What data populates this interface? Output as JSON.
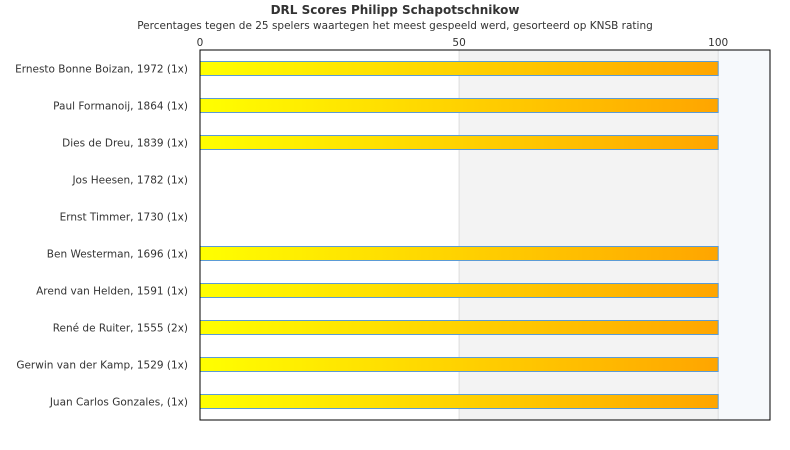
{
  "chart_data": {
    "type": "bar",
    "orientation": "horizontal",
    "title": "DRL Scores Philipp Schapotschnikow",
    "subtitle": "Percentages tegen de 25 spelers waartegen het meest gespeeld werd, gesorteerd op KNSB rating",
    "categories": [
      "Ernesto Bonne Boizan, 1972 (1x)",
      "Paul Formanoij, 1864 (1x)",
      "Dies de Dreu, 1839 (1x)",
      "Jos Heesen, 1782 (1x)",
      "Ernst Timmer, 1730 (1x)",
      "Ben Westerman, 1696 (1x)",
      "Arend van Helden, 1591 (1x)",
      "René de Ruiter, 1555 (2x)",
      "Gerwin van der Kamp, 1529 (1x)",
      "Juan Carlos Gonzales,  (1x)"
    ],
    "values": [
      100,
      100,
      100,
      0,
      0,
      100,
      100,
      100,
      100,
      100
    ],
    "xticks": [
      "0",
      "50",
      "100"
    ],
    "xlim": [
      0,
      110
    ],
    "colors": {
      "bar_start": "#ffff00",
      "bar_end": "#ffa500",
      "bar_border": "#5b9bd5",
      "band_mid": "#f3f3f3",
      "band_high": "#f6f9fc"
    }
  }
}
